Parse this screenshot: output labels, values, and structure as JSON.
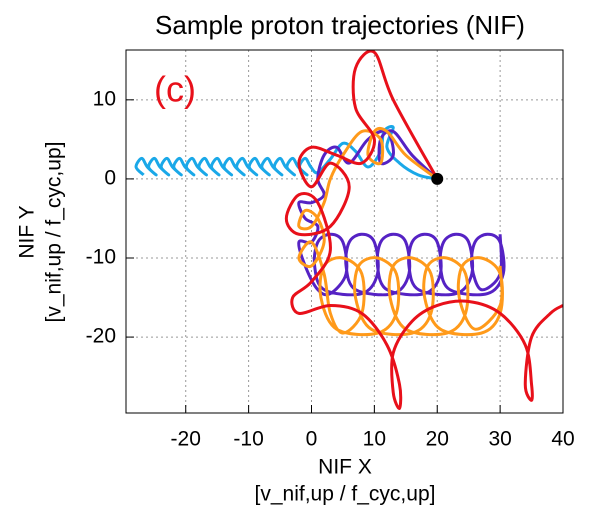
{
  "chart_data": {
    "type": "trajectory",
    "title": "Sample proton trajectories (NIF)",
    "panel_label": "(c)",
    "xlabel": [
      "NIF X",
      "[v_nif,up / f_cyc,up]"
    ],
    "ylabel": [
      "NIF Y",
      "[v_nif,up / f_cyc,up]"
    ],
    "xlim": [
      -29.5,
      40
    ],
    "ylim": [
      -29.6,
      16.3
    ],
    "xticks": [
      -20,
      -10,
      0,
      10,
      20,
      30,
      40
    ],
    "yticks": [
      10,
      0,
      -10,
      -20
    ],
    "grid": true,
    "series": [
      {
        "color": "#1aa8e8",
        "x": [
          20,
          17,
          14,
          12,
          13,
          11.5,
          11,
          9,
          7,
          5,
          3,
          1,
          -0.1,
          -1,
          -1.9,
          -0.7,
          -2.1,
          -3,
          -3.9,
          -2.7,
          -4.1,
          -5,
          -5.9,
          -4.7,
          -6.1,
          -7,
          -7.9,
          -6.7,
          -8.1,
          -9,
          -9.9,
          -8.7,
          -10.1,
          -11,
          -11.9,
          -10.7,
          -12.1,
          -13,
          -13.9,
          -12.7,
          -14.1,
          -15,
          -15.9,
          -14.7,
          -16.1,
          -17,
          -17.9,
          -16.7,
          -18.1,
          -19,
          -19.9,
          -18.7,
          -20.1,
          -21,
          -21.9,
          -20.7,
          -22.1,
          -23,
          -23.9,
          -22.7,
          -24.1,
          -25,
          -25.9,
          -24.7,
          -26.1,
          -27,
          -27.9,
          -26.7
        ],
        "values": [
          0,
          0.5,
          2,
          4,
          6.5,
          6,
          3.5,
          1.5,
          3.5,
          4.5,
          2.5,
          0.8,
          1.5,
          2.6,
          1.5,
          0.5,
          1.5,
          2.6,
          1.5,
          0.5,
          1.5,
          2.6,
          1.5,
          0.5,
          1.5,
          2.6,
          1.5,
          0.5,
          1.5,
          2.6,
          1.5,
          0.5,
          1.5,
          2.6,
          1.5,
          0.5,
          1.5,
          2.6,
          1.5,
          0.5,
          1.5,
          2.6,
          1.5,
          0.5,
          1.5,
          2.6,
          1.5,
          0.5,
          1.5,
          2.6,
          1.5,
          0.5,
          1.5,
          2.6,
          1.5,
          0.5,
          1.5,
          2.6,
          1.5,
          0.5,
          1.5,
          2.6,
          1.5,
          0.5,
          1.5,
          2.6,
          1.5,
          0.5
        ]
      },
      {
        "color": "#5522c4",
        "x": [
          20,
          16,
          13,
          11,
          11,
          13,
          12,
          9,
          6,
          4,
          2,
          1,
          2,
          0,
          -2,
          -1,
          1,
          0,
          -2,
          -1,
          1,
          3,
          5.5,
          5,
          3,
          1,
          0.5,
          2,
          8,
          10.5,
          10,
          8,
          6,
          5.5,
          7,
          13,
          15.5,
          15,
          13,
          11,
          10.5,
          12,
          18,
          20.5,
          20,
          18,
          16,
          15.5,
          17,
          23,
          25.5,
          25,
          23,
          21,
          20.5,
          22,
          28,
          30.5,
          30,
          28,
          26,
          25.5,
          27,
          30,
          30
        ],
        "values": [
          0,
          3,
          6,
          5,
          2,
          3,
          6,
          5,
          2,
          4,
          3,
          0,
          -2,
          -3,
          -3,
          -5,
          -6,
          -8,
          -8,
          -11,
          -14,
          -14.5,
          -12,
          -8,
          -7,
          -8,
          -11,
          -14,
          -14.5,
          -12,
          -8,
          -7,
          -8,
          -11,
          -14,
          -14.5,
          -12,
          -8,
          -7,
          -8,
          -11,
          -14,
          -14.5,
          -12,
          -8,
          -7,
          -8,
          -11,
          -14,
          -14.5,
          -12,
          -8,
          -7,
          -8,
          -11,
          -14,
          -14.5,
          -12,
          -8,
          -7,
          -8,
          -11,
          -14,
          -12,
          -7
        ]
      },
      {
        "color": "#ff9a1a",
        "x": [
          20,
          15,
          12,
          10,
          9,
          11,
          11,
          8,
          5,
          3,
          2,
          0,
          -2,
          -1,
          1,
          2,
          0,
          -2,
          0,
          2,
          3,
          5,
          8,
          8,
          5,
          2,
          1.5,
          4,
          10.5,
          13.5,
          13.5,
          10.5,
          7.5,
          7,
          9.5,
          16,
          19,
          19,
          16,
          13,
          12.5,
          15,
          21.5,
          24.5,
          24.5,
          21.5,
          18.5,
          18,
          20.5,
          27,
          30,
          30,
          27,
          24,
          23.5,
          26,
          30,
          30
        ],
        "values": [
          0,
          3,
          6,
          6,
          3,
          2,
          5,
          6,
          3,
          0,
          -3,
          -6,
          -6,
          -4,
          -5,
          -8,
          -11,
          -10,
          -8,
          -12,
          -17,
          -19.5,
          -17,
          -12,
          -10,
          -11,
          -15,
          -19,
          -19.5,
          -17,
          -12,
          -10,
          -11,
          -15,
          -19,
          -19.5,
          -17,
          -12,
          -10,
          -11,
          -15,
          -19,
          -19.5,
          -17,
          -12,
          -10,
          -11,
          -15,
          -19,
          -19.5,
          -17,
          -12,
          -10,
          -11,
          -15,
          -19,
          -16,
          -11
        ]
      },
      {
        "color": "#e8101a",
        "x": [
          20,
          13,
          10,
          7,
          7,
          10,
          8,
          4,
          0,
          -2,
          0,
          3,
          6,
          3,
          -2,
          -4,
          -2,
          1,
          3,
          0,
          -3,
          -2,
          3,
          8,
          12,
          14,
          14,
          13,
          13,
          16,
          20,
          25,
          30,
          34,
          35,
          35,
          34,
          35,
          38,
          40
        ],
        "values": [
          0,
          10,
          16,
          14,
          9,
          5,
          2,
          3,
          4,
          2,
          -1,
          2,
          -1,
          -6,
          -7,
          -5,
          -2,
          -3,
          -9,
          -13,
          -15,
          -17,
          -16,
          -17,
          -21,
          -26,
          -29,
          -27,
          -22,
          -18,
          -16,
          -15.5,
          -17,
          -21,
          -26,
          -28,
          -26,
          -20,
          -17,
          -16
        ]
      }
    ],
    "start": {
      "x": 20,
      "y": 0,
      "color": "#000000"
    }
  }
}
